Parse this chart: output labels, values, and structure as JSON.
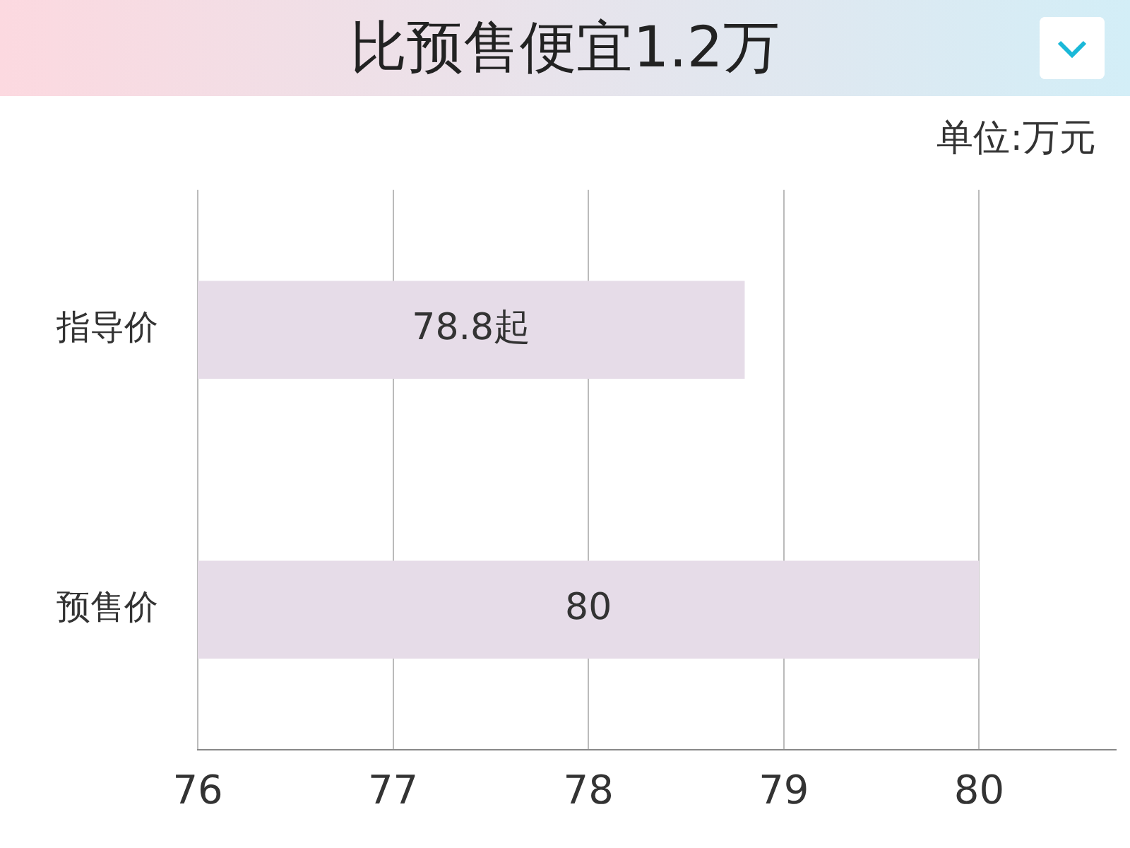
{
  "chart_data": {
    "type": "bar",
    "orientation": "horizontal",
    "title": "比预售便宜1.2万",
    "annotations": [
      "单位:万元"
    ],
    "categories": [
      "指导价",
      "预售价"
    ],
    "series": [
      {
        "color": "#e6dce8",
        "values": [
          78.8,
          80
        ],
        "value_labels": [
          "78.8起",
          "80"
        ]
      }
    ],
    "xlim": [
      76,
      80.7
    ],
    "xticks": [
      76,
      77,
      78,
      79,
      80
    ],
    "grid": "x",
    "legend": false
  }
}
